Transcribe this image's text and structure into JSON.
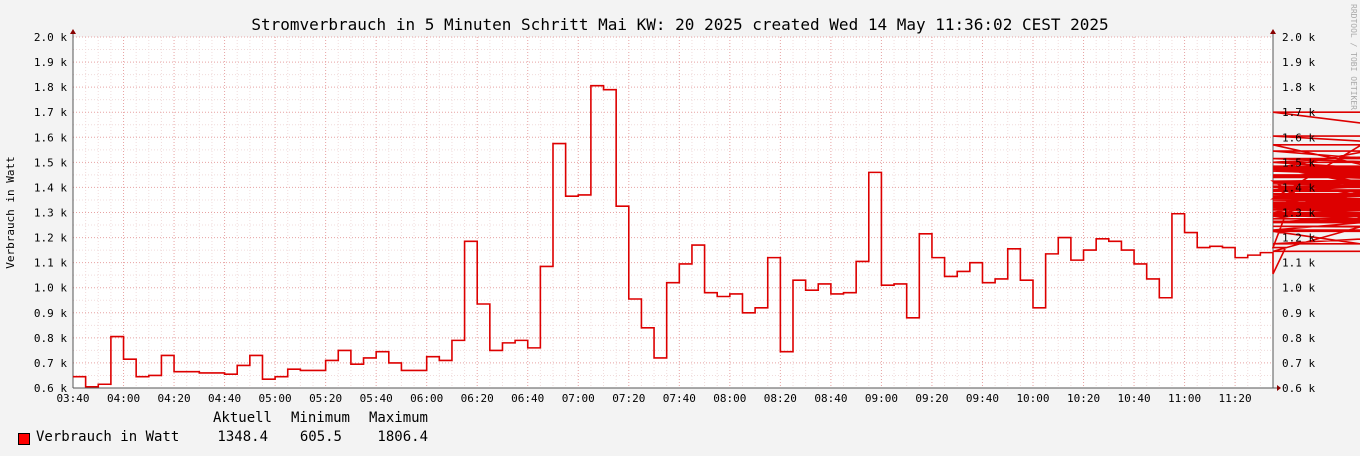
{
  "title": "Stromverbrauch in 5 Minuten Schritt Mai KW: 20 2025 created Wed 14 May 11:36:02 CEST 2025",
  "watermark": "RRDTOOL / TOBI OETIKER",
  "legend": {
    "headers": [
      "Aktuell",
      "Minimum",
      "Maximum"
    ],
    "series_label": "Verbrauch in Watt",
    "aktuell": "1348.4",
    "minimum": "605.5",
    "maximum": "1806.4"
  },
  "colors": {
    "line": "#dd0000",
    "grid": "#e7a3a3",
    "axis": "#555555",
    "plot_bg": "#ffffff"
  },
  "chart_data": {
    "type": "line",
    "title": "Stromverbrauch in 5 Minuten Schritt Mai KW: 20 2025 created Wed 14 May 11:36:02 CEST 2025",
    "ylabel": "Verbrauch in Watt",
    "xlabel": "",
    "ylim": [
      600,
      2000
    ],
    "y_ticks": [
      600,
      700,
      800,
      900,
      1000,
      1100,
      1200,
      1300,
      1400,
      1500,
      1600,
      1700,
      1800,
      1900,
      2000
    ],
    "y_tick_labels": [
      "0.6 k",
      "0.7 k",
      "0.8 k",
      "0.9 k",
      "1.0 k",
      "1.1 k",
      "1.2 k",
      "1.3 k",
      "1.4 k",
      "1.5 k",
      "1.6 k",
      "1.7 k",
      "1.8 k",
      "1.9 k",
      "2.0 k"
    ],
    "x_range": [
      "03:40",
      "11:35"
    ],
    "x_ticks": [
      "03:40",
      "04:00",
      "04:20",
      "04:40",
      "05:00",
      "05:20",
      "05:40",
      "06:00",
      "06:20",
      "06:40",
      "07:00",
      "07:20",
      "07:40",
      "08:00",
      "08:20",
      "08:40",
      "09:00",
      "09:20",
      "09:40",
      "10:00",
      "10:20",
      "10:40",
      "11:00",
      "11:20"
    ],
    "grid": true,
    "step": true,
    "series": [
      {
        "name": "Verbrauch in Watt",
        "x_start": "03:35",
        "interval_minutes": 5,
        "values": [
          645,
          645,
          605,
          615,
          805,
          715,
          645,
          650,
          730,
          665,
          665,
          660,
          660,
          655,
          690,
          730,
          635,
          645,
          675,
          670,
          670,
          710,
          750,
          695,
          720,
          745,
          700,
          670,
          670,
          725,
          710,
          790,
          1185,
          935,
          750,
          780,
          790,
          760,
          1085,
          1575,
          1365,
          1370,
          1806,
          1790,
          1325,
          955,
          840,
          720,
          1020,
          1095,
          1170,
          980,
          965,
          975,
          900,
          920,
          1120,
          745,
          1030,
          990,
          1015,
          975,
          980,
          1105,
          1460,
          1010,
          1015,
          880,
          1215,
          1120,
          1045,
          1065,
          1100,
          1020,
          1035,
          1155,
          1030,
          920,
          1135,
          1200,
          1110,
          1150,
          1195,
          1185,
          1150,
          1095,
          1035,
          960,
          1295,
          1220,
          1160,
          1165,
          1160,
          1120,
          1130,
          1140,
          1055,
          1160,
          1425,
          1335,
          1360,
          1300,
          1355,
          1570,
          1480,
          1405,
          1225,
          1145,
          1315,
          1285,
          1485,
          1330,
          1470,
          1445,
          1485,
          1480,
          1295,
          1310,
          1515,
          1475,
          1700,
          1545,
          1440,
          1465,
          1420,
          1400,
          1320,
          1275,
          1500,
          1390,
          1500,
          1605,
          1500,
          1385,
          1480,
          1375,
          1260,
          1260,
          1425,
          1450,
          1370,
          1335,
          1355,
          1340,
          1370,
          1335,
          1245,
          1230,
          1450,
          1415,
          1350,
          1325,
          1365,
          1265,
          1310,
          1295,
          1290,
          1175,
          1348
        ]
      }
    ]
  }
}
